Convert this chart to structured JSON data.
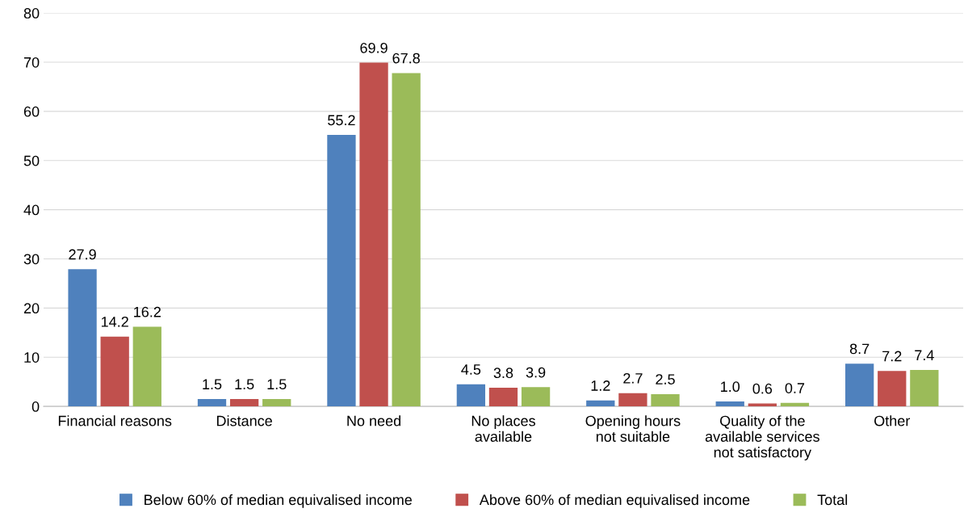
{
  "chart_data": {
    "type": "bar",
    "categories": [
      "Financial reasons",
      "Distance",
      "No need",
      "No places\navailable",
      "Opening hours\nnot suitable",
      "Quality of the\navailable services\nnot satisfactory",
      "Other"
    ],
    "series": [
      {
        "name": "Below 60% of median equivalised income",
        "color": "#4f81bd",
        "values": [
          27.9,
          1.5,
          55.2,
          4.5,
          1.2,
          1.0,
          8.7
        ],
        "value_labels": [
          "27.9",
          "1.5",
          "55.2",
          "4.5",
          "1.2",
          "1.0",
          "8.7"
        ]
      },
      {
        "name": "Above 60% of median equivalised income",
        "color": "#c0504d",
        "values": [
          14.2,
          1.5,
          69.9,
          3.8,
          2.7,
          0.6,
          7.2
        ],
        "value_labels": [
          "14.2",
          "1.5",
          "69.9",
          "3.8",
          "2.7",
          "0.6",
          "7.2"
        ]
      },
      {
        "name": "Total",
        "color": "#9bbb59",
        "values": [
          16.2,
          1.5,
          67.8,
          3.9,
          2.5,
          0.7,
          7.4
        ],
        "value_labels": [
          "16.2",
          "1.5",
          "67.8",
          "3.9",
          "2.5",
          "0.7",
          "7.4"
        ]
      }
    ],
    "ylim": [
      0,
      80
    ],
    "yticks": [
      0,
      10,
      20,
      30,
      40,
      50,
      60,
      70,
      80
    ],
    "grid": "y",
    "legend": "bottom"
  }
}
